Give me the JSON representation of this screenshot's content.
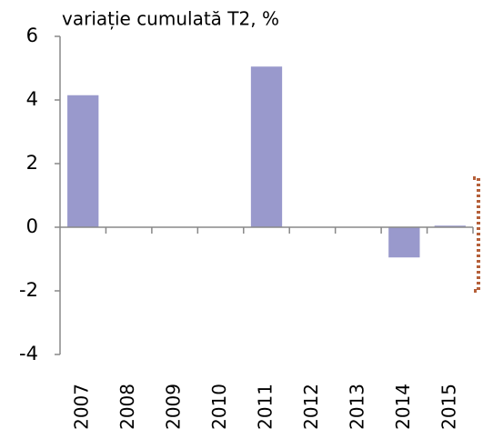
{
  "chart_data": {
    "type": "bar",
    "title": "variație cumulată T2, %",
    "categories": [
      "2007",
      "2008",
      "2009",
      "2010",
      "2011",
      "2012",
      "2013",
      "2014",
      "2015"
    ],
    "values": [
      4.15,
      0,
      0,
      0,
      5.05,
      0,
      0,
      -0.95,
      0.05
    ],
    "color": "#9999cc",
    "ylim": [
      -4,
      6
    ],
    "yticks": [
      -4,
      -2,
      0,
      2,
      4,
      6
    ],
    "grid": false
  }
}
